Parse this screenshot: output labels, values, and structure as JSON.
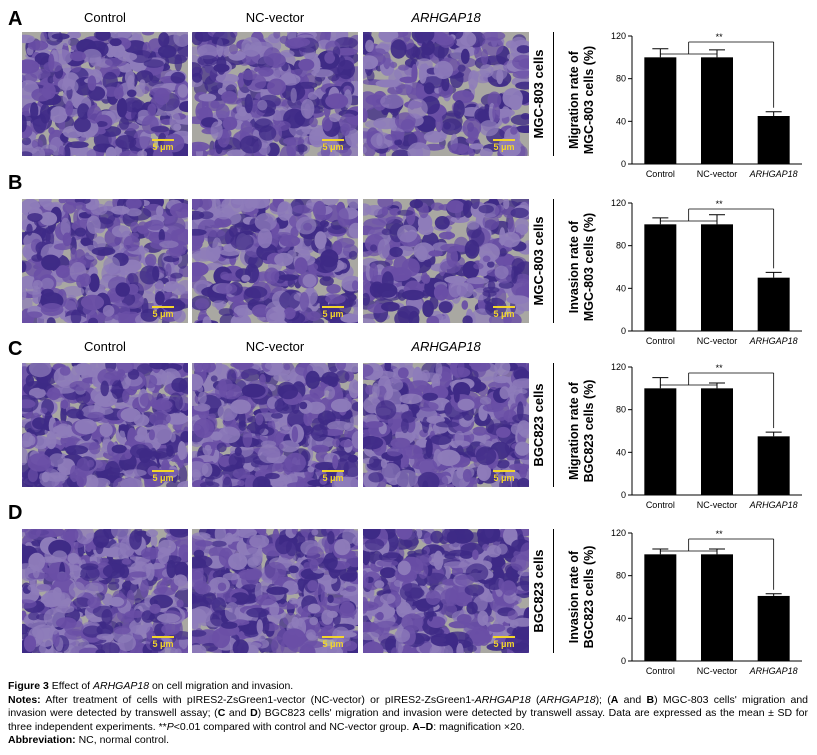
{
  "panels": [
    {
      "letter": "A",
      "row_label": "MGC-803 cells",
      "show_headers": true,
      "chart": {
        "ylabel_line1": "Migration rate of",
        "ylabel_line2": "MGC-803 cells (%)"
      }
    },
    {
      "letter": "B",
      "row_label": "MGC-803 cells",
      "show_headers": false,
      "chart": {
        "ylabel_line1": "Invasion rate of",
        "ylabel_line2": "MGC-803 cells (%)"
      }
    },
    {
      "letter": "C",
      "row_label": "BGC823 cells",
      "show_headers": true,
      "chart": {
        "ylabel_line1": "Migration rate of",
        "ylabel_line2": "BGC823 cells (%)"
      }
    },
    {
      "letter": "D",
      "row_label": "BGC823 cells",
      "show_headers": false,
      "chart": {
        "ylabel_line1": "Invasion rate of",
        "ylabel_line2": "BGC823 cells (%)"
      }
    }
  ],
  "column_headers": [
    "Control",
    "NC-vector",
    "ARHGAP18"
  ],
  "scale_bar_label": "5 μm",
  "colors": {
    "stain_dark": "#3e2a86",
    "stain_mid": "#6a4fa6",
    "stain_light": "#8e7cba",
    "membrane": "#a9a8a2",
    "scale": "#f2d52b"
  },
  "chart_data": [
    {
      "type": "bar",
      "categories": [
        "Control",
        "NC-vector",
        "ARHGAP18"
      ],
      "values": [
        100,
        100,
        45
      ],
      "errors": [
        8,
        7,
        4
      ],
      "ylabel": "Migration rate of MGC-803 cells (%)",
      "ylim": [
        0,
        120
      ],
      "yticks": [
        0,
        40,
        80,
        120
      ],
      "significance": "**",
      "grid": false
    },
    {
      "type": "bar",
      "categories": [
        "Control",
        "NC-vector",
        "ARHGAP18"
      ],
      "values": [
        100,
        100,
        50
      ],
      "errors": [
        6,
        9,
        5
      ],
      "ylabel": "Invasion rate of MGC-803 cells (%)",
      "ylim": [
        0,
        120
      ],
      "yticks": [
        0,
        40,
        80,
        120
      ],
      "significance": "**",
      "grid": false
    },
    {
      "type": "bar",
      "categories": [
        "Control",
        "NC-vector",
        "ARHGAP18"
      ],
      "values": [
        100,
        100,
        55
      ],
      "errors": [
        10,
        5,
        4
      ],
      "ylabel": "Migration rate of BGC823 cells (%)",
      "ylim": [
        0,
        120
      ],
      "yticks": [
        0,
        40,
        80,
        120
      ],
      "significance": "**",
      "grid": false
    },
    {
      "type": "bar",
      "categories": [
        "Control",
        "NC-vector",
        "ARHGAP18"
      ],
      "values": [
        100,
        100,
        61
      ],
      "errors": [
        5,
        5,
        2
      ],
      "ylabel": "Invasion rate of BGC823 cells (%)",
      "ylim": [
        0,
        120
      ],
      "yticks": [
        0,
        40,
        80,
        120
      ],
      "significance": "**",
      "grid": false
    }
  ],
  "caption": {
    "title_prefix": "Figure 3",
    "title_text_a": "Effect of ",
    "title_gene": "ARHGAP18",
    "title_text_b": " on cell migration and invasion.",
    "notes_label": "Notes:",
    "notes_text_1": "After treatment of cells with pIRES2-ZsGreen1-vector (NC-vector) or pIRES2-ZsGreen1-",
    "notes_gene_1": "ARHGAP18",
    "notes_text_2": " (",
    "notes_gene_2": "ARHGAP18",
    "notes_text_3": "); (",
    "notes_A": "A",
    "notes_and1": " and ",
    "notes_B": "B",
    "notes_text_4": ") MGC-803 cells' migration and invasion were detected by transwell assay; (",
    "notes_C": "C",
    "notes_and2": " and ",
    "notes_D": "D",
    "notes_text_5": ") BGC823 cells' migration and invasion were detected by transwell assay. Data are expressed as the mean ± SD for three independent experiments. **",
    "notes_p": "P",
    "notes_text_6": "<0.01 compared with control and NC-vector group. ",
    "notes_AD": "A–D",
    "notes_text_7": ": magnification ×20.",
    "abbrev_label": "Abbreviation:",
    "abbrev_text": " NC, normal control."
  }
}
